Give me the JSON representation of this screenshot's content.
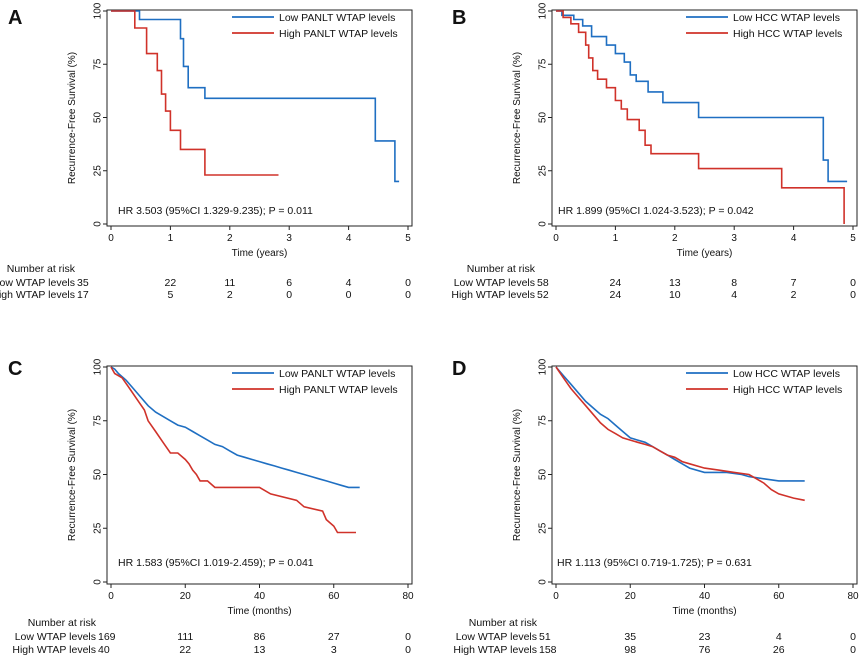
{
  "chart_data": [
    {
      "type": "line",
      "panel_label": "A",
      "xlabel": "Time (years)",
      "ylabel": "Recurrence-Free Survival (%)",
      "xlim": [
        0,
        5
      ],
      "ylim": [
        0,
        100
      ],
      "xticks": [
        0,
        1,
        2,
        3,
        4,
        5
      ],
      "yticks": [
        0,
        25,
        50,
        75,
        100
      ],
      "legend_position": "top-right",
      "annotation": "HR 3.503 (95%CI 1.329-9.235); P = 0.011",
      "series": [
        {
          "name": "Low PANLT WTAP levels",
          "color": "#1f6fc2",
          "points": [
            [
              0,
              100
            ],
            [
              0.48,
              100
            ],
            [
              0.48,
              96
            ],
            [
              1.17,
              96
            ],
            [
              1.17,
              87
            ],
            [
              1.22,
              87
            ],
            [
              1.22,
              74
            ],
            [
              1.3,
              74
            ],
            [
              1.3,
              64
            ],
            [
              1.58,
              64
            ],
            [
              1.58,
              59
            ],
            [
              4.45,
              59
            ],
            [
              4.45,
              39
            ],
            [
              4.78,
              39
            ],
            [
              4.78,
              20
            ],
            [
              4.85,
              20
            ]
          ]
        },
        {
          "name": "High PANLT WTAP levels",
          "color": "#d0322a",
          "points": [
            [
              0,
              100
            ],
            [
              0.4,
              100
            ],
            [
              0.4,
              92
            ],
            [
              0.6,
              92
            ],
            [
              0.6,
              80
            ],
            [
              0.78,
              80
            ],
            [
              0.78,
              72
            ],
            [
              0.85,
              72
            ],
            [
              0.85,
              61
            ],
            [
              0.92,
              61
            ],
            [
              0.92,
              53
            ],
            [
              1.0,
              53
            ],
            [
              1.0,
              44
            ],
            [
              1.17,
              44
            ],
            [
              1.17,
              35
            ],
            [
              1.58,
              35
            ],
            [
              1.58,
              23
            ],
            [
              2.82,
              23
            ]
          ]
        }
      ],
      "risk_table": {
        "heading": "Number at risk",
        "times": [
          0,
          1,
          2,
          3,
          4,
          5
        ],
        "rows": [
          {
            "label": "Low WTAP levels",
            "values": [
              "35",
              "22",
              "11",
              "6",
              "4",
              "0"
            ]
          },
          {
            "label": "High WTAP levels",
            "values": [
              "17",
              "5",
              "2",
              "0",
              "0",
              "0"
            ]
          }
        ]
      }
    },
    {
      "type": "line",
      "panel_label": "B",
      "xlabel": "Time (years)",
      "ylabel": "Recurrence-Free Survival (%)",
      "xlim": [
        0,
        5
      ],
      "ylim": [
        0,
        100
      ],
      "xticks": [
        0,
        1,
        2,
        3,
        4,
        5
      ],
      "yticks": [
        0,
        25,
        50,
        75,
        100
      ],
      "legend_position": "top-right",
      "annotation": "HR 1.899 (95%CI 1.024-3.523); P = 0.042",
      "series": [
        {
          "name": "Low HCC WTAP levels",
          "color": "#1f6fc2",
          "points": [
            [
              0,
              100
            ],
            [
              0.1,
              100
            ],
            [
              0.1,
              98
            ],
            [
              0.3,
              98
            ],
            [
              0.3,
              96
            ],
            [
              0.45,
              96
            ],
            [
              0.45,
              93
            ],
            [
              0.6,
              93
            ],
            [
              0.6,
              88
            ],
            [
              0.85,
              88
            ],
            [
              0.85,
              84
            ],
            [
              1.0,
              84
            ],
            [
              1.0,
              80
            ],
            [
              1.15,
              80
            ],
            [
              1.15,
              76
            ],
            [
              1.25,
              76
            ],
            [
              1.25,
              70
            ],
            [
              1.35,
              70
            ],
            [
              1.35,
              67
            ],
            [
              1.55,
              67
            ],
            [
              1.55,
              62
            ],
            [
              1.8,
              62
            ],
            [
              1.8,
              57
            ],
            [
              2.4,
              57
            ],
            [
              2.4,
              50
            ],
            [
              4.5,
              50
            ],
            [
              4.5,
              30
            ],
            [
              4.58,
              30
            ],
            [
              4.58,
              20
            ],
            [
              4.9,
              20
            ]
          ]
        },
        {
          "name": "High HCC WTAP levels",
          "color": "#d0322a",
          "points": [
            [
              0,
              100
            ],
            [
              0.12,
              100
            ],
            [
              0.12,
              97
            ],
            [
              0.25,
              97
            ],
            [
              0.25,
              94
            ],
            [
              0.38,
              94
            ],
            [
              0.38,
              90
            ],
            [
              0.5,
              90
            ],
            [
              0.5,
              84
            ],
            [
              0.55,
              84
            ],
            [
              0.55,
              78
            ],
            [
              0.62,
              78
            ],
            [
              0.62,
              72
            ],
            [
              0.7,
              72
            ],
            [
              0.7,
              68
            ],
            [
              0.85,
              68
            ],
            [
              0.85,
              64
            ],
            [
              1.0,
              64
            ],
            [
              1.0,
              58
            ],
            [
              1.1,
              58
            ],
            [
              1.1,
              54
            ],
            [
              1.2,
              54
            ],
            [
              1.2,
              49
            ],
            [
              1.4,
              49
            ],
            [
              1.4,
              44
            ],
            [
              1.5,
              44
            ],
            [
              1.5,
              37
            ],
            [
              1.6,
              37
            ],
            [
              1.6,
              33
            ],
            [
              2.4,
              33
            ],
            [
              2.4,
              26
            ],
            [
              3.8,
              26
            ],
            [
              3.8,
              17
            ],
            [
              4.85,
              17
            ],
            [
              4.85,
              0
            ]
          ]
        }
      ],
      "risk_table": {
        "heading": "Number at risk",
        "times": [
          0,
          1,
          2,
          3,
          4,
          5
        ],
        "rows": [
          {
            "label": "Low WTAP levels",
            "values": [
              "58",
              "24",
              "13",
              "8",
              "7",
              "0"
            ]
          },
          {
            "label": "High WTAP levels",
            "values": [
              "52",
              "24",
              "10",
              "4",
              "2",
              "0"
            ]
          }
        ]
      }
    },
    {
      "type": "line",
      "panel_label": "C",
      "xlabel": "Time (months)",
      "ylabel": "Recurrence-Free Survival (%)",
      "xlim": [
        0,
        80
      ],
      "ylim": [
        0,
        100
      ],
      "xticks": [
        0,
        20,
        40,
        60,
        80
      ],
      "yticks": [
        0,
        25,
        50,
        75,
        100
      ],
      "legend_position": "top-right",
      "annotation": "HR 1.583 (95%CI 1.019-2.459); P = 0.041",
      "series": [
        {
          "name": "Low PANLT WTAP levels",
          "color": "#1f6fc2",
          "points": [
            [
              0,
              100
            ],
            [
              1,
              99
            ],
            [
              2,
              97
            ],
            [
              4,
              94
            ],
            [
              6,
              90
            ],
            [
              8,
              86
            ],
            [
              10,
              82
            ],
            [
              12,
              79
            ],
            [
              14,
              77
            ],
            [
              16,
              75
            ],
            [
              18,
              73
            ],
            [
              20,
              72
            ],
            [
              22,
              70
            ],
            [
              24,
              68
            ],
            [
              26,
              66
            ],
            [
              28,
              64
            ],
            [
              30,
              63
            ],
            [
              32,
              61
            ],
            [
              34,
              59
            ],
            [
              36,
              58
            ],
            [
              38,
              57
            ],
            [
              40,
              56
            ],
            [
              42,
              55
            ],
            [
              44,
              54
            ],
            [
              46,
              53
            ],
            [
              48,
              52
            ],
            [
              50,
              51
            ],
            [
              52,
              50
            ],
            [
              54,
              49
            ],
            [
              56,
              48
            ],
            [
              58,
              47
            ],
            [
              60,
              46
            ],
            [
              62,
              45
            ],
            [
              64,
              44
            ],
            [
              67,
              44
            ]
          ]
        },
        {
          "name": "High PANLT WTAP levels",
          "color": "#d0322a",
          "points": [
            [
              0,
              100
            ],
            [
              1,
              97
            ],
            [
              3,
              95
            ],
            [
              5,
              90
            ],
            [
              7,
              85
            ],
            [
              9,
              80
            ],
            [
              10,
              75
            ],
            [
              12,
              70
            ],
            [
              14,
              65
            ],
            [
              16,
              60
            ],
            [
              18,
              60
            ],
            [
              20,
              57
            ],
            [
              21,
              55
            ],
            [
              22,
              52
            ],
            [
              23,
              50
            ],
            [
              24,
              47
            ],
            [
              26,
              47
            ],
            [
              28,
              44
            ],
            [
              40,
              44
            ],
            [
              43,
              41
            ],
            [
              50,
              38
            ],
            [
              52,
              35
            ],
            [
              57,
              33
            ],
            [
              58,
              29
            ],
            [
              60,
              26
            ],
            [
              61,
              23
            ],
            [
              66,
              23
            ]
          ]
        }
      ],
      "risk_table": {
        "heading": "Number at risk",
        "times": [
          0,
          20,
          40,
          60,
          80
        ],
        "rows": [
          {
            "label": "Low WTAP levels",
            "values": [
              "169",
              "111",
              "86",
              "27",
              "0"
            ]
          },
          {
            "label": "High WTAP levels",
            "values": [
              "40",
              "22",
              "13",
              "3",
              "0"
            ]
          }
        ]
      }
    },
    {
      "type": "line",
      "panel_label": "D",
      "xlabel": "Time (months)",
      "ylabel": "Recurrence-Free Survival (%)",
      "xlim": [
        0,
        80
      ],
      "ylim": [
        0,
        100
      ],
      "xticks": [
        0,
        20,
        40,
        60,
        80
      ],
      "yticks": [
        0,
        25,
        50,
        75,
        100
      ],
      "legend_position": "top-right",
      "annotation": "HR 1.113 (95%CI 0.719-1.725); P = 0.631",
      "series": [
        {
          "name": "Low HCC WTAP levels",
          "color": "#1f6fc2",
          "points": [
            [
              0,
              100
            ],
            [
              2,
              96
            ],
            [
              4,
              92
            ],
            [
              6,
              88
            ],
            [
              8,
              84
            ],
            [
              10,
              81
            ],
            [
              12,
              78
            ],
            [
              14,
              76
            ],
            [
              16,
              73
            ],
            [
              18,
              70
            ],
            [
              20,
              67
            ],
            [
              22,
              66
            ],
            [
              24,
              65
            ],
            [
              26,
              63
            ],
            [
              28,
              61
            ],
            [
              30,
              59
            ],
            [
              32,
              57
            ],
            [
              34,
              55
            ],
            [
              36,
              53
            ],
            [
              40,
              51
            ],
            [
              46,
              51
            ],
            [
              50,
              50
            ],
            [
              52,
              49
            ],
            [
              56,
              48
            ],
            [
              60,
              47
            ],
            [
              67,
              47
            ]
          ]
        },
        {
          "name": "High HCC WTAP levels",
          "color": "#d0322a",
          "points": [
            [
              0,
              100
            ],
            [
              2,
              95
            ],
            [
              4,
              90
            ],
            [
              6,
              86
            ],
            [
              8,
              82
            ],
            [
              10,
              78
            ],
            [
              12,
              74
            ],
            [
              14,
              71
            ],
            [
              16,
              69
            ],
            [
              18,
              67
            ],
            [
              20,
              66
            ],
            [
              22,
              65
            ],
            [
              24,
              64
            ],
            [
              26,
              63
            ],
            [
              28,
              61
            ],
            [
              30,
              59
            ],
            [
              32,
              58
            ],
            [
              34,
              56
            ],
            [
              36,
              55
            ],
            [
              40,
              53
            ],
            [
              44,
              52
            ],
            [
              48,
              51
            ],
            [
              52,
              50
            ],
            [
              54,
              48
            ],
            [
              56,
              46
            ],
            [
              58,
              43
            ],
            [
              60,
              41
            ],
            [
              62,
              40
            ],
            [
              64,
              39
            ],
            [
              67,
              38
            ]
          ]
        }
      ],
      "risk_table": {
        "heading": "Number at risk",
        "times": [
          0,
          20,
          40,
          60,
          80
        ],
        "rows": [
          {
            "label": "Low WTAP levels",
            "values": [
              "51",
              "35",
              "23",
              "4",
              "0"
            ]
          },
          {
            "label": "High WTAP levels",
            "values": [
              "158",
              "98",
              "76",
              "26",
              "0"
            ]
          }
        ]
      }
    }
  ]
}
